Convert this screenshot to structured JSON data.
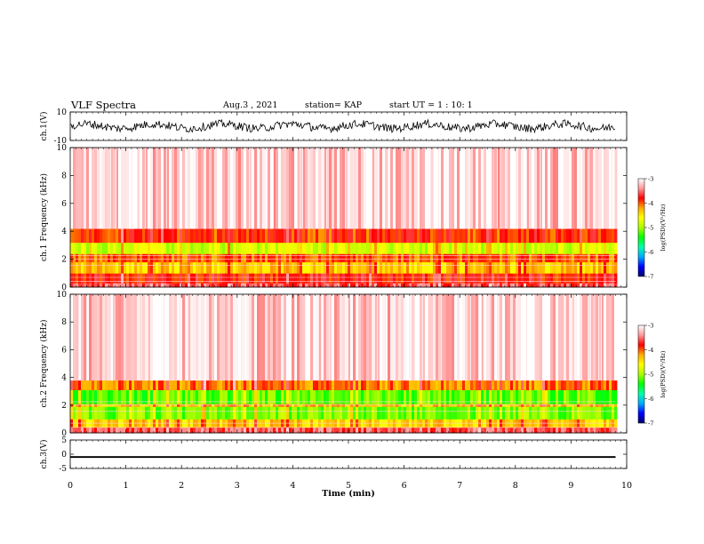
{
  "header": {
    "title": "VLF Spectra",
    "date": "Aug.3 , 2021",
    "station": "station= KAP",
    "start": "start UT = 1 : 10: 1"
  },
  "chart_data": [
    {
      "type": "line",
      "panel": "waveform ch.1",
      "ylabel": "ch.1(V)",
      "ylim": [
        -10,
        10
      ],
      "yticks": [
        "10",
        "-10"
      ],
      "xlim": [
        0,
        10
      ],
      "data_end_min": 9.8,
      "series": [
        {
          "color": "#000000",
          "amplitude_range_V": [
            -6,
            6
          ]
        }
      ]
    },
    {
      "type": "heatmap",
      "panel": "spectrogram ch.1",
      "ylabel": "ch.1 Frequency (kHz)",
      "ylim": [
        0,
        10
      ],
      "yticks": [
        "0",
        "2",
        "4",
        "6",
        "8",
        "10"
      ],
      "xlim": [
        0,
        10
      ],
      "data_end_min": 9.8,
      "colorbar": {
        "label": "log(PSD)(V²/Hz)",
        "range": [
          -7,
          -3
        ],
        "ticks": [
          "-3",
          "-4",
          "-5",
          "-6",
          "-7"
        ]
      },
      "bands": [
        {
          "freq_kHz": [
            0.0,
            0.3
          ],
          "level": -3.6
        },
        {
          "freq_kHz": [
            0.3,
            1.0
          ],
          "level": -3.8
        },
        {
          "freq_kHz": [
            1.0,
            1.8
          ],
          "level": -4.4
        },
        {
          "freq_kHz": [
            1.8,
            2.4
          ],
          "level": -4.0
        },
        {
          "freq_kHz": [
            2.4,
            3.2
          ],
          "level": -4.8
        },
        {
          "freq_kHz": [
            3.2,
            4.2
          ],
          "level": -3.9
        },
        {
          "freq_kHz": [
            4.2,
            10.0
          ],
          "level": -3.2
        }
      ]
    },
    {
      "type": "heatmap",
      "panel": "spectrogram ch.2",
      "ylabel": "ch.2 Frequency (kHz)",
      "ylim": [
        0,
        10
      ],
      "yticks": [
        "0",
        "2",
        "4",
        "6",
        "8",
        "10"
      ],
      "xlim": [
        0,
        10
      ],
      "data_end_min": 9.8,
      "colorbar": {
        "label": "log(PSD)(V²/Hz)",
        "range": [
          -7,
          -3
        ],
        "ticks": [
          "-3",
          "-4",
          "-5",
          "-6",
          "-7"
        ]
      },
      "bands": [
        {
          "freq_kHz": [
            0.0,
            0.4
          ],
          "level": -3.6
        },
        {
          "freq_kHz": [
            0.4,
            1.0
          ],
          "level": -4.4
        },
        {
          "freq_kHz": [
            1.0,
            1.9
          ],
          "level": -5.1
        },
        {
          "freq_kHz": [
            1.9,
            2.1
          ],
          "level": -4.3
        },
        {
          "freq_kHz": [
            2.1,
            3.1
          ],
          "level": -5.2
        },
        {
          "freq_kHz": [
            3.1,
            3.8
          ],
          "level": -4.1
        },
        {
          "freq_kHz": [
            3.8,
            10.0
          ],
          "level": -3.2
        }
      ]
    },
    {
      "type": "line",
      "panel": "waveform ch.3",
      "ylabel": "ch.3(V)",
      "ylim": [
        -5,
        5
      ],
      "yticks": [
        "5",
        "0",
        "-5"
      ],
      "xlim": [
        0,
        10
      ],
      "data_end_min": 9.8,
      "series": [
        {
          "color": "#000000",
          "amplitude_range_V": [
            -1.3,
            -0.7
          ]
        }
      ]
    }
  ],
  "xaxis": {
    "label": "Time (min)",
    "ticks": [
      "0",
      "1",
      "2",
      "3",
      "4",
      "5",
      "6",
      "7",
      "8",
      "9",
      "10"
    ]
  },
  "colors": {
    "colorbar_stops": [
      "#000066",
      "#0000ff",
      "#00aaff",
      "#00ffaa",
      "#00ff00",
      "#aaff00",
      "#ffff00",
      "#ffaa00",
      "#ff0000",
      "#ff9999",
      "#ffffff"
    ]
  }
}
